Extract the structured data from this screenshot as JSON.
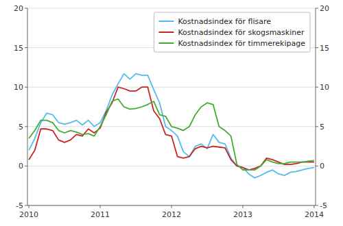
{
  "chart_data": {
    "type": "line",
    "x": [
      2010,
      2010.083333,
      2010.166666,
      2010.249999,
      2010.333332,
      2010.416665,
      2010.499998,
      2010.583331,
      2010.666664,
      2010.749997,
      2010.83333,
      2010.916663,
      2010.999996,
      2011.083329,
      2011.166662,
      2011.249995,
      2011.333328,
      2011.416661,
      2011.499994,
      2011.583327,
      2011.66666,
      2011.749993,
      2011.833326,
      2011.916659,
      2011.999992,
      2012.083325,
      2012.166658,
      2012.249991,
      2012.333324,
      2012.416657,
      2012.49999,
      2012.583323,
      2012.666656,
      2012.749989,
      2012.833322,
      2012.916655,
      2012.999988,
      2013.083321,
      2013.166654,
      2013.249987,
      2013.33332,
      2013.416653,
      2013.499986,
      2013.583319,
      2013.666652,
      2013.749985,
      2013.833318,
      2013.916651,
      2013.999984
    ],
    "series": [
      {
        "name": "Kostnadsindex för flisare",
        "color": "#55bbee",
        "values": [
          2.0,
          3.5,
          5.5,
          6.7,
          6.5,
          5.5,
          5.3,
          5.5,
          5.8,
          5.2,
          5.8,
          5.0,
          5.5,
          7.0,
          9.0,
          10.4,
          11.7,
          11.0,
          11.7,
          11.5,
          11.5,
          9.7,
          8.0,
          5.0,
          4.5,
          3.8,
          1.8,
          1.2,
          2.5,
          2.8,
          2.2,
          4.0,
          3.0,
          2.8,
          1.0,
          0.0,
          -0.2,
          -1.0,
          -1.5,
          -1.2,
          -0.8,
          -0.5,
          -1.0,
          -1.2,
          -0.8,
          -0.7,
          -0.5,
          -0.3,
          -0.2
        ]
      },
      {
        "name": "Kostnadsindex för skogsmaskiner",
        "color": "#cc2222",
        "values": [
          0.8,
          2.0,
          4.7,
          4.7,
          4.5,
          3.3,
          3.0,
          3.3,
          4.0,
          3.8,
          4.7,
          4.2,
          4.8,
          6.8,
          8.0,
          10.0,
          9.8,
          9.5,
          9.5,
          10.0,
          10.0,
          7.0,
          6.0,
          4.0,
          3.8,
          1.2,
          1.0,
          1.2,
          2.2,
          2.5,
          2.3,
          2.5,
          2.4,
          2.3,
          0.8,
          0.0,
          -0.2,
          -0.5,
          -0.3,
          0.0,
          1.0,
          0.8,
          0.5,
          0.2,
          0.2,
          0.3,
          0.5,
          0.5,
          0.5
        ]
      },
      {
        "name": "Kostnadsindex för timmerekipage",
        "color": "#44aa33",
        "values": [
          3.5,
          4.5,
          5.8,
          5.8,
          5.5,
          4.5,
          4.2,
          4.5,
          4.3,
          4.0,
          4.1,
          3.8,
          5.0,
          6.5,
          8.2,
          8.5,
          7.5,
          7.2,
          7.3,
          7.5,
          7.8,
          8.2,
          6.5,
          6.3,
          5.0,
          4.8,
          4.5,
          5.0,
          6.5,
          7.5,
          8.0,
          7.8,
          5.0,
          4.5,
          3.8,
          0.2,
          -0.5,
          -0.5,
          -0.5,
          0.0,
          0.8,
          0.5,
          0.3,
          0.3,
          0.5,
          0.5,
          0.5,
          0.6,
          0.7
        ]
      }
    ],
    "xlim": [
      2009.98,
      2014.019984
    ],
    "xticks": [
      2010,
      2011,
      2012,
      2013,
      2014
    ],
    "ylim": [
      -5,
      20
    ],
    "yticks": [
      -5,
      0,
      5,
      10,
      15,
      20
    ],
    "y2lim": [
      -5,
      20
    ],
    "y2ticks": [
      -5,
      0,
      5,
      10,
      15,
      20
    ],
    "grid": true,
    "legend": "upper right"
  }
}
